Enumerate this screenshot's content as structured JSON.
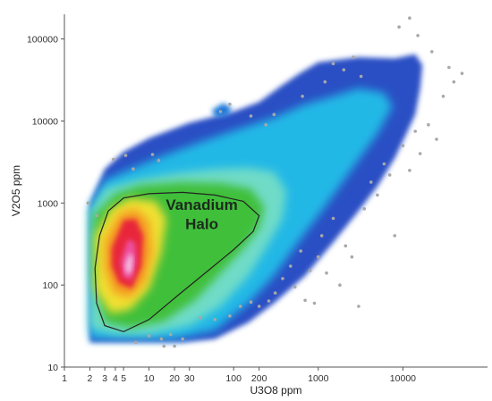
{
  "chart_data": {
    "type": "scatter",
    "subtype": "density-scatter",
    "title": "",
    "xlabel": "U3O8 ppm",
    "ylabel": "V2O5 ppm",
    "x_scale": "log",
    "y_scale": "log",
    "xlim": [
      1,
      100000
    ],
    "ylim": [
      10,
      200000
    ],
    "x_ticks": [
      1,
      2,
      3,
      4,
      5,
      10,
      20,
      30,
      100,
      200,
      1000,
      10000
    ],
    "x_tick_labels": [
      "1",
      "2",
      "3",
      "4",
      "5",
      "10",
      "20",
      "30",
      "100",
      "200",
      "1000",
      "10000"
    ],
    "y_ticks": [
      10,
      100,
      1000,
      10000,
      100000
    ],
    "y_tick_labels": [
      "10",
      "100",
      "1000",
      "10000",
      "100000"
    ],
    "grid": false,
    "legend": "none",
    "annotation": {
      "lines": [
        "Vanadium",
        "Halo"
      ]
    },
    "colors": {
      "sparse_points": "#a8a8a8",
      "density_ramp": [
        "#2a4fc4",
        "#1f78d8",
        "#22b8e6",
        "#6fdcc8",
        "#3fbf3a",
        "#c8e03a",
        "#f0e030",
        "#f59a20",
        "#e8283a",
        "#ee4fa0",
        "#f5c8e6"
      ],
      "halo_outline": "#222222"
    },
    "outlier_points": [
      [
        1.9,
        1000
      ],
      [
        2.4,
        700
      ],
      [
        3.8,
        3400
      ],
      [
        5.3,
        3800
      ],
      [
        6.5,
        2600
      ],
      [
        11,
        3900
      ],
      [
        13,
        3300
      ],
      [
        15,
        18
      ],
      [
        20,
        18
      ],
      [
        14,
        22
      ],
      [
        10,
        24
      ],
      [
        7,
        20
      ],
      [
        25,
        22
      ],
      [
        18,
        25
      ],
      [
        40,
        40
      ],
      [
        60,
        38
      ],
      [
        90,
        42
      ],
      [
        120,
        55
      ],
      [
        160,
        62
      ],
      [
        200,
        55
      ],
      [
        260,
        64
      ],
      [
        310,
        80
      ],
      [
        380,
        120
      ],
      [
        470,
        170
      ],
      [
        530,
        95
      ],
      [
        620,
        260
      ],
      [
        700,
        65
      ],
      [
        800,
        150
      ],
      [
        900,
        60
      ],
      [
        1000,
        220
      ],
      [
        1100,
        400
      ],
      [
        1250,
        140
      ],
      [
        1500,
        650
      ],
      [
        1800,
        100
      ],
      [
        2100,
        300
      ],
      [
        2500,
        220
      ],
      [
        3000,
        55
      ],
      [
        3500,
        850
      ],
      [
        4200,
        1800
      ],
      [
        5000,
        1250
      ],
      [
        6000,
        3000
      ],
      [
        7000,
        2200
      ],
      [
        8000,
        400
      ],
      [
        10000,
        5000
      ],
      [
        12000,
        2500
      ],
      [
        14000,
        7500
      ],
      [
        16000,
        4000
      ],
      [
        20000,
        9000
      ],
      [
        25000,
        6000
      ],
      [
        30000,
        20000
      ],
      [
        40000,
        30000
      ],
      [
        12000,
        180000
      ],
      [
        9000,
        140000
      ],
      [
        15000,
        110000
      ],
      [
        22000,
        70000
      ],
      [
        35000,
        45000
      ],
      [
        50000,
        38000
      ],
      [
        300,
        12000
      ],
      [
        240,
        9000
      ],
      [
        160,
        11500
      ],
      [
        70,
        13000
      ],
      [
        90,
        16000
      ],
      [
        1500,
        50000
      ],
      [
        2000,
        42000
      ],
      [
        2600,
        60000
      ],
      [
        3200,
        35000
      ],
      [
        1200,
        30000
      ],
      [
        650,
        20000
      ]
    ]
  }
}
